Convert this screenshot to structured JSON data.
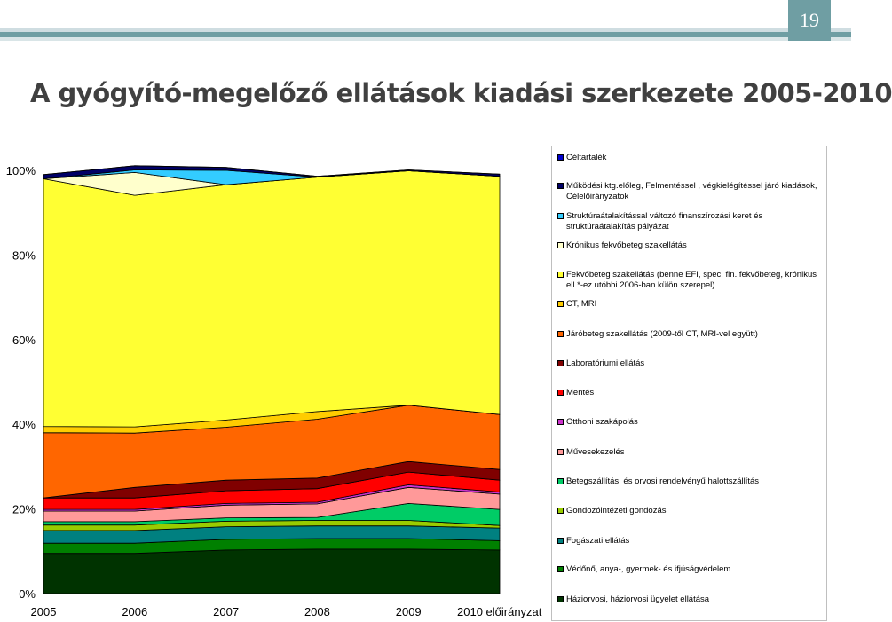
{
  "slide": {
    "page_number": "19",
    "title": "A gyógyító-megelőző ellátások kiadási szerkezete 2005-2010"
  },
  "chart_data": {
    "type": "area",
    "stacked": "percent",
    "title": "",
    "xlabel": "",
    "ylabel": "",
    "categories": [
      "2005",
      "2006",
      "2007",
      "2008",
      "2009",
      "2010 előirányzat"
    ],
    "y_ticks": [
      "0%",
      "20%",
      "40%",
      "60%",
      "80%",
      "100%"
    ],
    "ylim": [
      0,
      100
    ],
    "legend_position": "right",
    "series": [
      {
        "name": "Háziorvosi, háziorvosi ügyelet ellátása",
        "color": "#003300",
        "values": [
          9.5,
          9.5,
          10.3,
          10.5,
          10.5,
          10.3
        ]
      },
      {
        "name": "Védőnő, anya-, gyermek- és ifjúságvédelem",
        "color": "#008000",
        "values": [
          2.4,
          2.4,
          2.5,
          2.5,
          2.5,
          2.2
        ]
      },
      {
        "name": "Fogászati ellátás",
        "color": "#008080",
        "values": [
          3.0,
          3.0,
          3.0,
          3.0,
          3.0,
          3.0
        ]
      },
      {
        "name": "Gondozóintézeti gondozás",
        "color": "#99cc00",
        "values": [
          1.3,
          1.3,
          1.3,
          1.3,
          1.3,
          0.6
        ]
      },
      {
        "name": "Betegszállítás, és orvosi rendelvényű halottszállítás",
        "color": "#00cc66",
        "values": [
          0.8,
          0.8,
          0.8,
          0.7,
          4.0,
          3.8
        ]
      },
      {
        "name": "Művesekezelés",
        "color": "#ff9999",
        "values": [
          2.5,
          2.5,
          3.0,
          3.2,
          3.8,
          3.6
        ]
      },
      {
        "name": "Otthoni szakápolás",
        "color": "#cc33cc",
        "values": [
          0.4,
          0.4,
          0.4,
          0.4,
          0.6,
          0.5
        ]
      },
      {
        "name": "Mentés",
        "color": "#ff0000",
        "values": [
          2.7,
          2.7,
          3.0,
          3.2,
          3.0,
          2.8
        ]
      },
      {
        "name": "Laboratóriumi ellátás",
        "color": "#800000",
        "values": [
          0.0,
          2.5,
          2.5,
          2.5,
          2.5,
          2.5
        ]
      },
      {
        "name": "Járóbeteg szakellátás (2009-től CT, MRI-vel együtt)",
        "color": "#ff6600",
        "values": [
          15.4,
          12.8,
          12.5,
          13.9,
          13.3,
          13.0
        ]
      },
      {
        "name": "CT, MRI",
        "color": "#ffcc00",
        "values": [
          1.5,
          1.5,
          1.7,
          1.8,
          0.0,
          0.0
        ]
      },
      {
        "name": "Fekvőbeteg szakellátás (benne EFI, spec. fin. fekvőbeteg, krónikus ell.*-ez utóbbi 2006-ban külön szerepel)",
        "color": "#ffff33",
        "values": [
          58.5,
          54.7,
          55.6,
          55.4,
          55.4,
          56.3
        ]
      },
      {
        "name": "Krónikus fekvőbeteg szakellátás",
        "color": "#ffffcc",
        "values": [
          0.0,
          5.4,
          0.0,
          0.0,
          0.0,
          0.0
        ]
      },
      {
        "name": "Struktúraátalakítással változó finanszírozási keret és struktúraátalakítás pályázat",
        "color": "#33ccff",
        "values": [
          0.0,
          0.6,
          3.4,
          0.0,
          0.0,
          0.0
        ]
      },
      {
        "name": "Működési ktg.előleg, Felmentéssel , végkielégítéssel járó kiadások, Célelőirányzatok",
        "color": "#000066",
        "values": [
          1.0,
          1.0,
          0.7,
          0.2,
          0.2,
          0.5
        ]
      },
      {
        "name": "Céltartalék",
        "color": "#0000cc",
        "values": [
          0.0,
          0.0,
          0.0,
          0.0,
          0.0,
          0.0
        ]
      }
    ]
  }
}
